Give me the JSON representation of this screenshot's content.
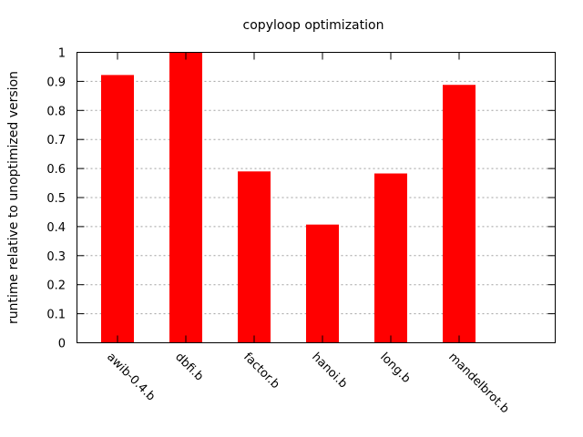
{
  "chart_data": {
    "type": "bar",
    "title": "copyloop optimization",
    "xlabel": "",
    "ylabel": "runtime relative to unoptimized version",
    "categories": [
      "awib-0.4.b",
      "dbfi.b",
      "factor.b",
      "hanoi.b",
      "long.b",
      "mandelbrot.b"
    ],
    "values": [
      0.922,
      1.0,
      0.59,
      0.407,
      0.583,
      0.888
    ],
    "ylim": [
      0,
      1
    ],
    "yticks": [
      "0",
      "0.1",
      "0.2",
      "0.3",
      "0.4",
      "0.5",
      "0.6",
      "0.7",
      "0.8",
      "0.9",
      "1"
    ],
    "grid": true,
    "legend": "none",
    "bar_color": "#ff0000"
  }
}
